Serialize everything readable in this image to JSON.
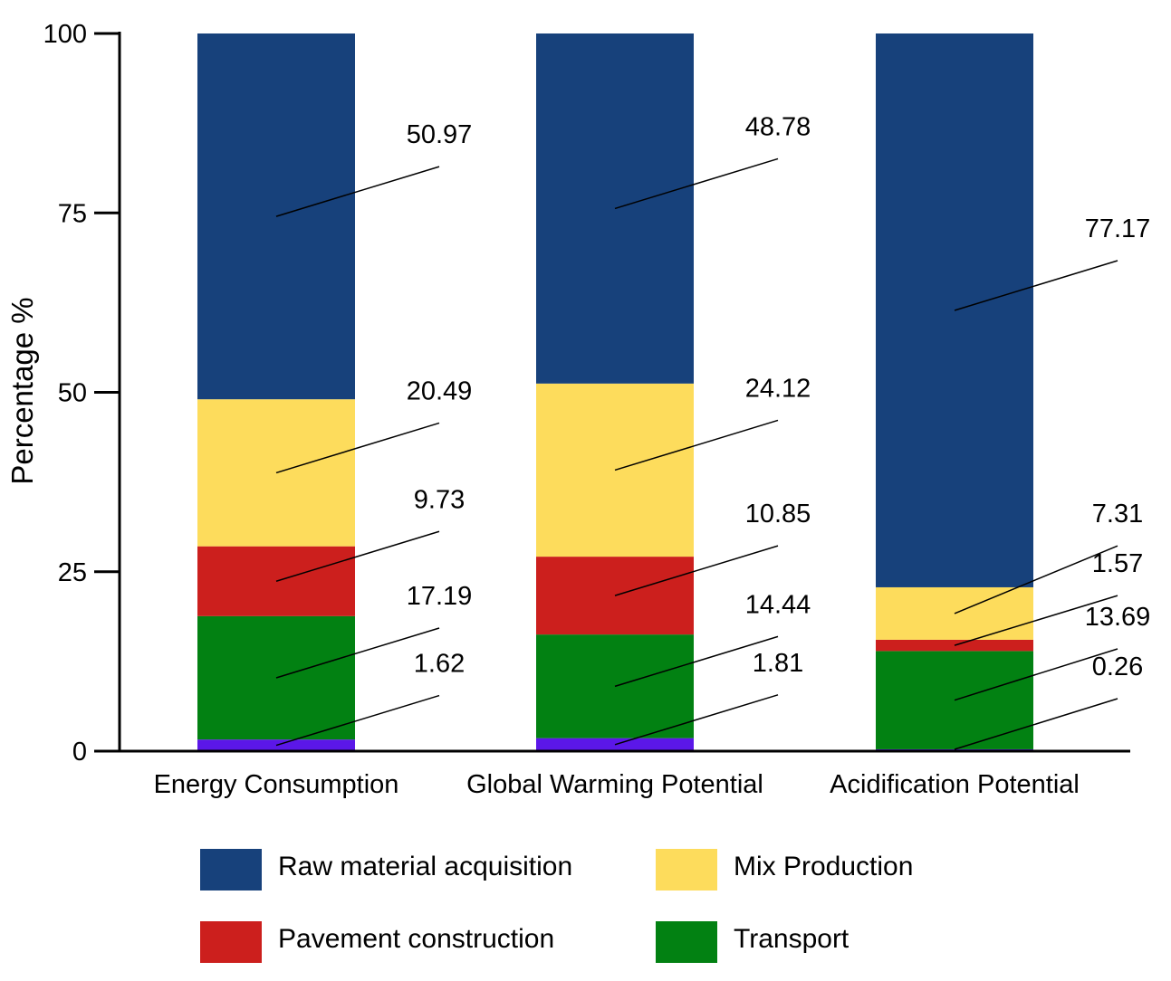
{
  "chart_data": {
    "type": "bar",
    "stacked": true,
    "title": "",
    "xlabel": "",
    "ylabel": "Percentage %",
    "ylim": [
      0,
      100
    ],
    "yticks": [
      0,
      25,
      50,
      75,
      100
    ],
    "grid": false,
    "legend_placement": "bottom",
    "categories": [
      "Energy Consumption",
      "Global Warming Potential",
      "Acidification Potential"
    ],
    "series": [
      {
        "name": "",
        "color": "#5b17e8",
        "values": [
          1.62,
          1.81,
          0.26
        ]
      },
      {
        "name": "Transport",
        "color": "#028112",
        "values": [
          17.19,
          14.44,
          13.69
        ]
      },
      {
        "name": "Pavement construction",
        "color": "#cc1f1d",
        "values": [
          9.73,
          10.85,
          1.57
        ]
      },
      {
        "name": "Mix Production",
        "color": "#fddc5c",
        "values": [
          20.49,
          24.12,
          7.31
        ]
      },
      {
        "name": "Raw material acquisition",
        "color": "#17417b",
        "values": [
          50.97,
          48.78,
          77.17
        ]
      }
    ],
    "legend_order": [
      "Raw material acquisition",
      "Mix Production",
      "Pavement construction",
      "Transport"
    ]
  }
}
